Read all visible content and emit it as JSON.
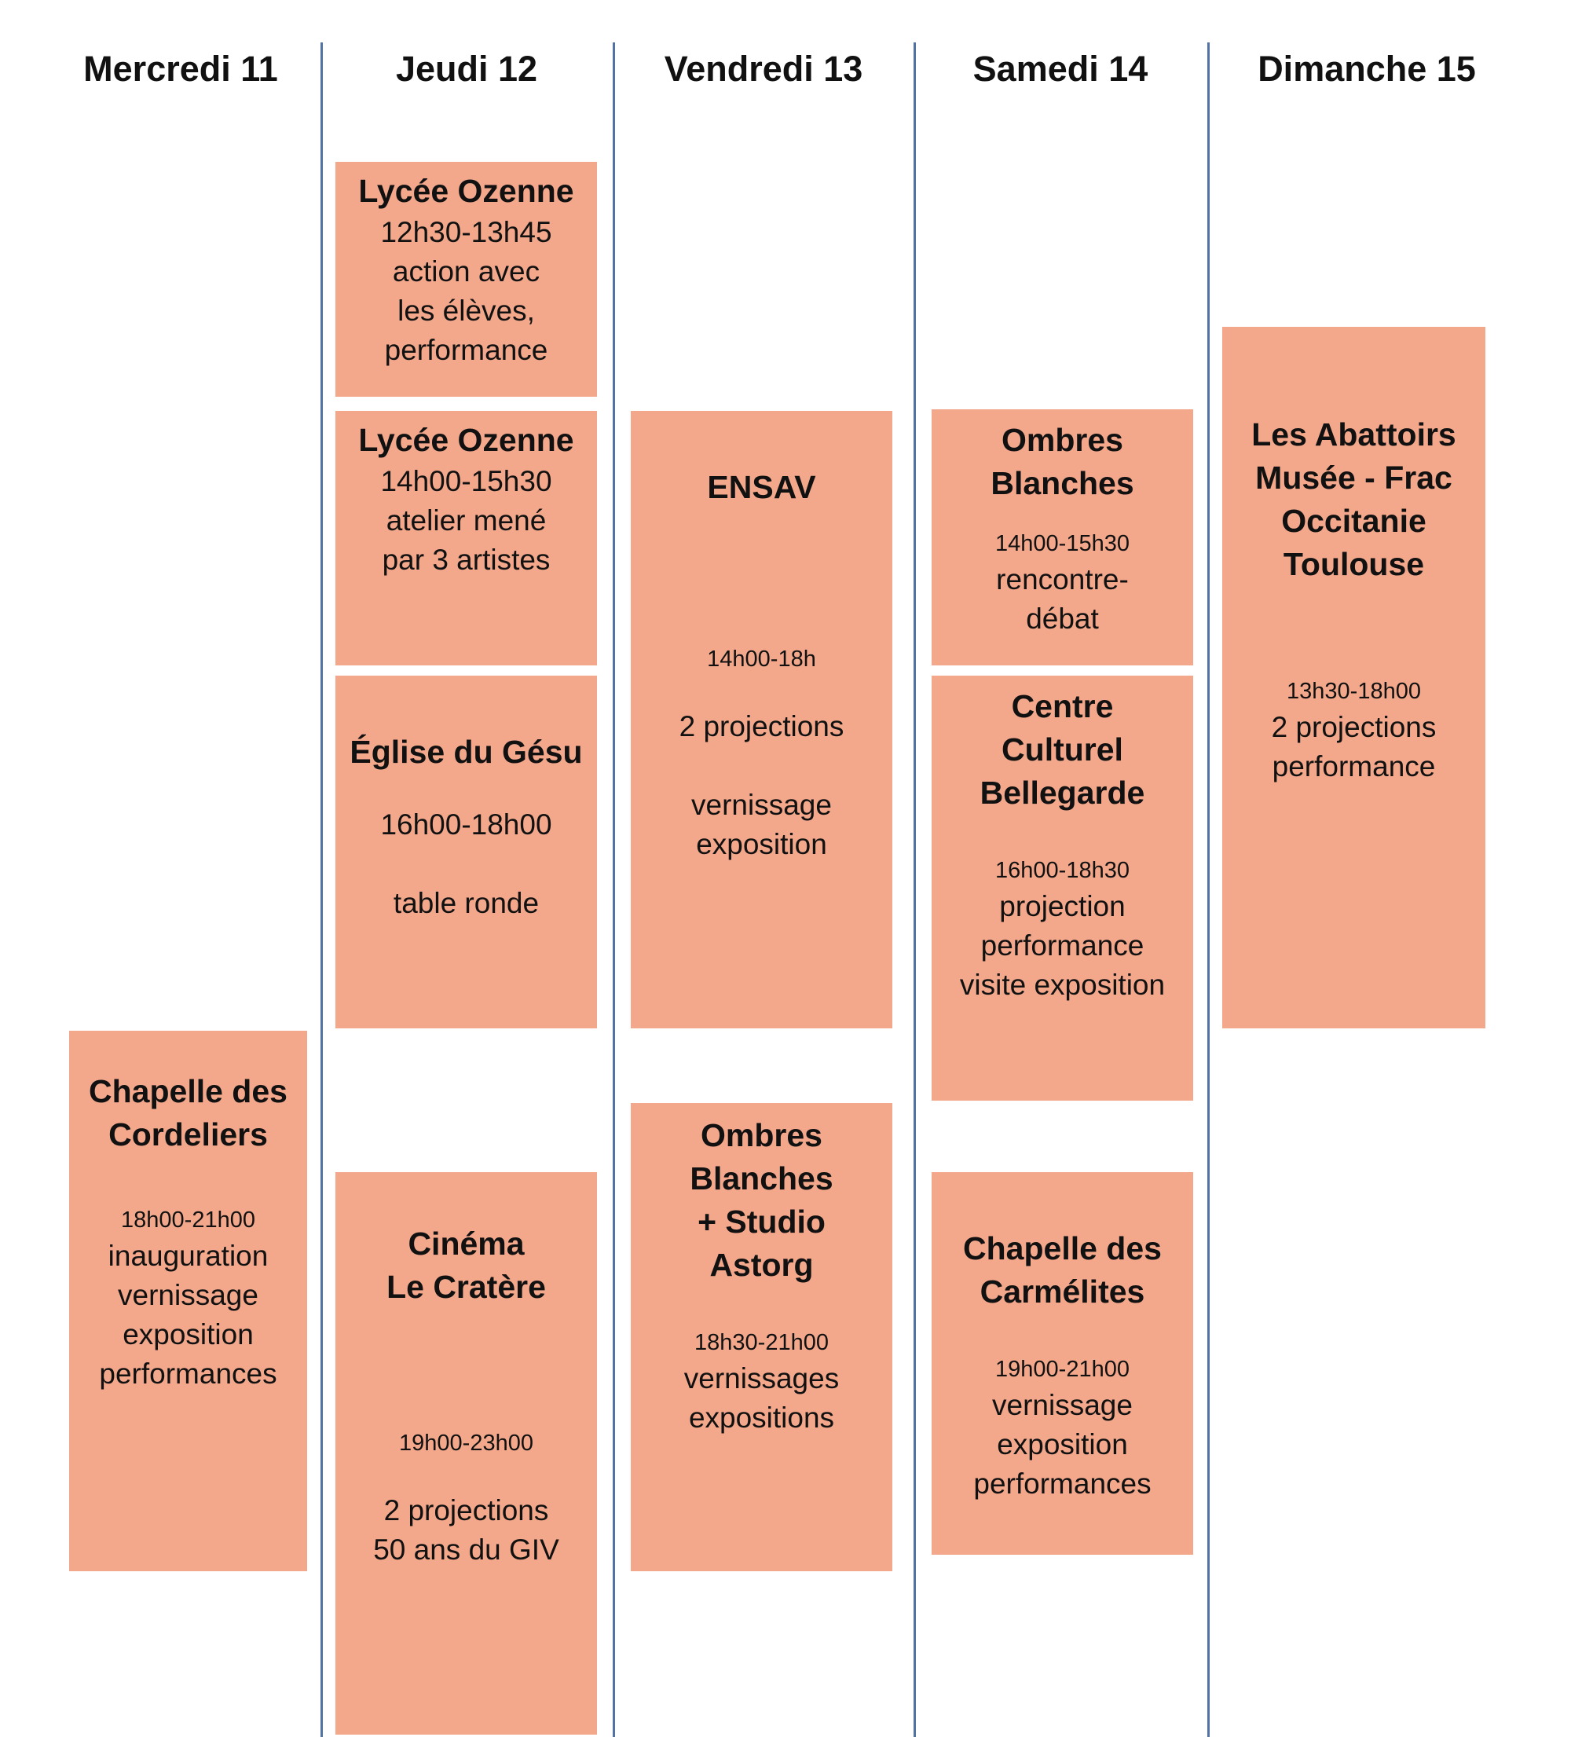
{
  "colors": {
    "event_fill": "#f3a88c",
    "divider": "#5272a3",
    "text": "#111111"
  },
  "days": [
    "Mercredi 11",
    "Jeudi 12",
    "Vendredi 13",
    "Samedi 14",
    "Dimanche 15"
  ],
  "events": [
    {
      "day": "Mercredi 11",
      "title": "Chapelle des\nCordeliers",
      "time": "18h00-21h00",
      "desc": "inauguration\nvernissage\nexposition\nperformances"
    },
    {
      "day": "Jeudi 12",
      "title": "Lycée Ozenne",
      "time": "",
      "desc": "12h30-13h45\naction avec\nles élèves,\nperformance"
    },
    {
      "day": "Jeudi 12",
      "title": "Lycée Ozenne",
      "time": "",
      "desc": "14h00-15h30\natelier mené\npar 3 artistes"
    },
    {
      "day": "Jeudi 12",
      "title": "Église du Gésu",
      "time": "",
      "desc": "16h00-18h00\n\ntable ronde"
    },
    {
      "day": "Jeudi 12",
      "title": "Cinéma\nLe Cratère",
      "time": "19h00-23h00",
      "desc": "2 projections\n50 ans du GIV"
    },
    {
      "day": "Vendredi 13",
      "title": "ENSAV",
      "time": "14h00-18h",
      "desc": "2 projections\n\nvernissage\nexposition"
    },
    {
      "day": "Vendredi 13",
      "title": "Ombres\nBlanches\n+ Studio\nAstorg",
      "time": "18h30-21h00",
      "desc": "vernissages\nexpositions"
    },
    {
      "day": "Samedi 14",
      "title": "Ombres\nBlanches",
      "time": "14h00-15h30",
      "desc": "rencontre-\ndébat"
    },
    {
      "day": "Samedi 14",
      "title": "Centre\nCulturel\nBellegarde",
      "time": "16h00-18h30",
      "desc": "projection\nperformance\nvisite exposition"
    },
    {
      "day": "Samedi 14",
      "title": "Chapelle des\nCarmélites",
      "time": "19h00-21h00",
      "desc": "vernissage\nexposition\nperformances"
    },
    {
      "day": "Dimanche 15",
      "title": "Les Abattoirs\nMusée - Frac\nOccitanie\nToulouse",
      "time": "13h30-18h00",
      "desc": "2 projections\nperformance"
    }
  ]
}
